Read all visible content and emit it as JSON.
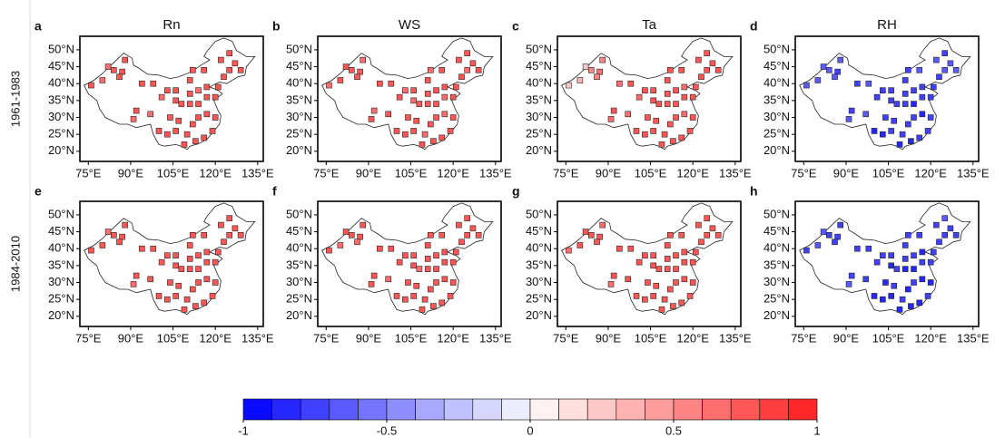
{
  "chart_data": {
    "type": "station-map",
    "rows": [
      "1961-1983",
      "1984-2010"
    ],
    "xlim": [
      72,
      137
    ],
    "ylim": [
      17,
      54
    ],
    "xticks": [
      {
        "value": 75,
        "label": "75°E"
      },
      {
        "value": 90,
        "label": "90°E"
      },
      {
        "value": 105,
        "label": "105°E"
      },
      {
        "value": 120,
        "label": "120°E"
      },
      {
        "value": 135,
        "label": "135°E"
      }
    ],
    "yticks": [
      {
        "value": 20,
        "label": "20°N"
      },
      {
        "value": 25,
        "label": "25°N"
      },
      {
        "value": 30,
        "label": "30°N"
      },
      {
        "value": 35,
        "label": "35°N"
      },
      {
        "value": 40,
        "label": "40°N"
      },
      {
        "value": 45,
        "label": "45°N"
      },
      {
        "value": 50,
        "label": "50°N"
      }
    ],
    "stations": {
      "lon": [
        76,
        80,
        84,
        87,
        88,
        82,
        86,
        94,
        98,
        103,
        101,
        106,
        111,
        116,
        112,
        91,
        97,
        92,
        104,
        107,
        103,
        106,
        109,
        110,
        113,
        116,
        119,
        120,
        117,
        114,
        112,
        108,
        111,
        114,
        117,
        120,
        114,
        117,
        121,
        123,
        125,
        127,
        125,
        122,
        129,
        111,
        106,
        100
      ],
      "lat": [
        39.5,
        41,
        44,
        43.5,
        47,
        45,
        42,
        40,
        40,
        38,
        36,
        38,
        41,
        44,
        44,
        29.5,
        31,
        32,
        30,
        29,
        25,
        26,
        22,
        25,
        23,
        24,
        26,
        30,
        31,
        30,
        28,
        34,
        34,
        34,
        36,
        36,
        38,
        39,
        39,
        42,
        44,
        46,
        49,
        47,
        44,
        37,
        35,
        26
      ]
    },
    "panels": [
      {
        "letter": "a",
        "title": "Rn",
        "values": [
          0.7,
          0.65,
          0.7,
          0.75,
          0.7,
          0.65,
          0.7,
          0.7,
          0.75,
          0.7,
          0.65,
          0.7,
          0.75,
          0.7,
          0.7,
          0.6,
          0.65,
          0.7,
          0.75,
          0.7,
          0.7,
          0.75,
          0.7,
          0.7,
          0.75,
          0.7,
          0.7,
          0.75,
          0.7,
          0.7,
          0.75,
          0.7,
          0.7,
          0.75,
          0.7,
          0.7,
          0.65,
          0.7,
          0.75,
          0.7,
          0.7,
          0.75,
          0.7,
          0.7,
          0.75,
          0.7,
          0.7,
          0.7
        ]
      },
      {
        "letter": "b",
        "title": "WS",
        "values": [
          0.65,
          0.7,
          0.7,
          0.7,
          0.65,
          0.7,
          0.75,
          0.7,
          0.7,
          0.65,
          0.7,
          0.75,
          0.7,
          0.7,
          0.65,
          0.7,
          0.7,
          0.65,
          0.7,
          0.75,
          0.7,
          0.7,
          0.75,
          0.65,
          0.7,
          0.7,
          0.75,
          0.7,
          0.65,
          0.7,
          0.7,
          0.75,
          0.7,
          0.7,
          0.65,
          0.7,
          0.7,
          0.75,
          0.7,
          0.7,
          0.65,
          0.7,
          0.75,
          0.7,
          0.7,
          0.7,
          0.65,
          0.7
        ]
      },
      {
        "letter": "c",
        "title": "Ta",
        "values": [
          0.2,
          0.3,
          0.55,
          0.6,
          0.55,
          0.25,
          0.5,
          0.65,
          0.7,
          0.7,
          0.65,
          0.7,
          0.7,
          0.75,
          0.7,
          0.6,
          0.65,
          0.7,
          0.7,
          0.7,
          0.75,
          0.7,
          0.7,
          0.7,
          0.75,
          0.7,
          0.7,
          0.7,
          0.65,
          0.7,
          0.7,
          0.7,
          0.75,
          0.7,
          0.7,
          0.7,
          0.7,
          0.65,
          0.7,
          0.7,
          0.75,
          0.7,
          0.7,
          0.7,
          0.7,
          0.7,
          0.7,
          0.7
        ]
      },
      {
        "letter": "d",
        "title": "RH",
        "values": [
          -0.7,
          -0.65,
          -0.7,
          -0.75,
          -0.7,
          -0.65,
          -0.7,
          -0.75,
          -0.7,
          -0.8,
          -0.75,
          -0.8,
          -0.75,
          -0.7,
          -0.75,
          -0.65,
          -0.7,
          -0.75,
          -0.8,
          -0.8,
          -0.85,
          -0.8,
          -0.85,
          -0.8,
          -0.85,
          -0.8,
          -0.8,
          -0.8,
          -0.85,
          -0.8,
          -0.8,
          -0.8,
          -0.8,
          -0.85,
          -0.8,
          -0.75,
          -0.8,
          -0.8,
          -0.75,
          -0.75,
          -0.7,
          -0.7,
          -0.75,
          -0.7,
          -0.7,
          -0.8,
          -0.8,
          -0.85
        ]
      },
      {
        "letter": "e",
        "values": [
          0.7,
          0.7,
          0.75,
          0.7,
          0.7,
          0.65,
          0.7,
          0.7,
          0.7,
          0.75,
          0.7,
          0.7,
          0.7,
          0.75,
          0.7,
          0.65,
          0.7,
          0.7,
          0.7,
          0.75,
          0.7,
          0.7,
          0.75,
          0.7,
          0.7,
          0.75,
          0.7,
          0.7,
          0.7,
          0.75,
          0.7,
          0.7,
          0.7,
          0.7,
          0.75,
          0.7,
          0.7,
          0.7,
          0.75,
          0.7,
          0.7,
          0.7,
          0.75,
          0.7,
          0.7,
          0.7,
          0.7,
          0.75
        ]
      },
      {
        "letter": "f",
        "values": [
          0.7,
          0.65,
          0.7,
          0.7,
          0.7,
          0.7,
          0.65,
          0.7,
          0.75,
          0.7,
          0.7,
          0.7,
          0.7,
          0.7,
          0.75,
          0.7,
          0.65,
          0.7,
          0.7,
          0.75,
          0.7,
          0.7,
          0.7,
          0.75,
          0.7,
          0.7,
          0.7,
          0.7,
          0.75,
          0.7,
          0.7,
          0.65,
          0.7,
          0.7,
          0.7,
          0.75,
          0.7,
          0.7,
          0.7,
          0.7,
          0.75,
          0.7,
          0.7,
          0.7,
          0.7,
          0.75,
          0.7,
          0.7
        ]
      },
      {
        "letter": "g",
        "values": [
          0.65,
          0.7,
          0.7,
          0.7,
          0.65,
          0.7,
          0.7,
          0.7,
          0.7,
          0.75,
          0.7,
          0.7,
          0.75,
          0.7,
          0.7,
          0.65,
          0.7,
          0.7,
          0.75,
          0.7,
          0.7,
          0.75,
          0.7,
          0.7,
          0.7,
          0.75,
          0.7,
          0.7,
          0.7,
          0.7,
          0.75,
          0.7,
          0.7,
          0.7,
          0.7,
          0.75,
          0.7,
          0.7,
          0.7,
          0.75,
          0.7,
          0.7,
          0.7,
          0.7,
          0.75,
          0.7,
          0.7,
          0.7
        ]
      },
      {
        "letter": "h",
        "values": [
          -0.75,
          -0.7,
          -0.75,
          -0.8,
          -0.75,
          -0.7,
          -0.75,
          -0.8,
          -0.75,
          -0.8,
          -0.8,
          -0.8,
          -0.75,
          -0.75,
          -0.8,
          -0.7,
          -0.75,
          -0.8,
          -0.85,
          -0.8,
          -0.85,
          -0.85,
          -0.85,
          -0.8,
          -0.85,
          -0.85,
          -0.8,
          -0.85,
          -0.85,
          -0.8,
          -0.85,
          -0.8,
          -0.85,
          -0.85,
          -0.8,
          -0.8,
          -0.8,
          -0.85,
          -0.8,
          -0.75,
          -0.75,
          -0.75,
          -0.7,
          -0.75,
          -0.75,
          -0.8,
          -0.85,
          -0.85
        ]
      }
    ],
    "colorbar": {
      "bounds": [
        -1,
        -0.9,
        -0.8,
        -0.7,
        -0.6,
        -0.5,
        -0.4,
        -0.3,
        -0.2,
        -0.1,
        0,
        0.1,
        0.2,
        0.3,
        0.4,
        0.5,
        0.6,
        0.7,
        0.8,
        0.9,
        1
      ],
      "colors": [
        "#0a0aff",
        "#2626ff",
        "#4040ff",
        "#5a5aff",
        "#7474ff",
        "#8e8eff",
        "#a8a8ff",
        "#c0c0ff",
        "#d6d6ff",
        "#ececff",
        "#fff2f2",
        "#ffdede",
        "#ffc8c8",
        "#ffb2b2",
        "#ff9c9c",
        "#ff8585",
        "#ff6e6e",
        "#ff5656",
        "#ff3f3f",
        "#ff2828"
      ],
      "ticks": [
        -1,
        -0.5,
        0,
        0.5,
        1
      ]
    }
  }
}
